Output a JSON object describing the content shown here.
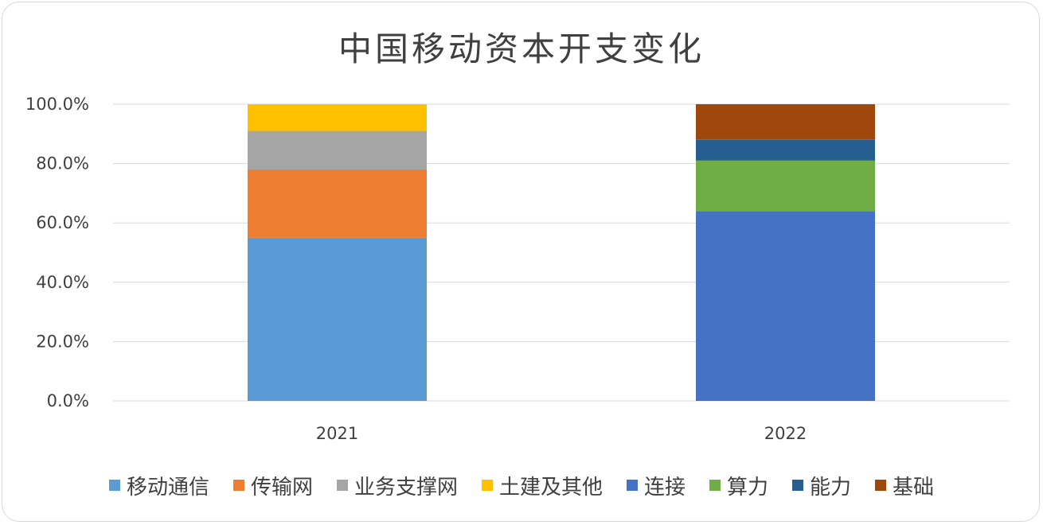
{
  "chart_data": {
    "type": "bar",
    "stacked": true,
    "title": "中国移动资本开支变化",
    "xlabel": "",
    "ylabel": "",
    "categories": [
      "2021",
      "2022"
    ],
    "ylim": [
      0,
      100
    ],
    "yticks": [
      "0.0%",
      "20.0%",
      "40.0%",
      "60.0%",
      "80.0%",
      "100.0%"
    ],
    "grid": true,
    "legend_position": "bottom",
    "series": [
      {
        "name": "移动通信",
        "color": "#5B9BD5",
        "values": [
          55,
          0
        ]
      },
      {
        "name": "传输网",
        "color": "#ED7D31",
        "values": [
          23,
          0
        ]
      },
      {
        "name": "业务支撑网",
        "color": "#A5A5A5",
        "values": [
          13,
          0
        ]
      },
      {
        "name": "土建及其他",
        "color": "#FFC000",
        "values": [
          9,
          0
        ]
      },
      {
        "name": "连接",
        "color": "#4472C4",
        "values": [
          0,
          64
        ]
      },
      {
        "name": "算力",
        "color": "#70AD47",
        "values": [
          0,
          17
        ]
      },
      {
        "name": "能力",
        "color": "#255E91",
        "values": [
          0,
          7
        ]
      },
      {
        "name": "基础",
        "color": "#9E480E",
        "values": [
          0,
          12
        ]
      }
    ]
  }
}
